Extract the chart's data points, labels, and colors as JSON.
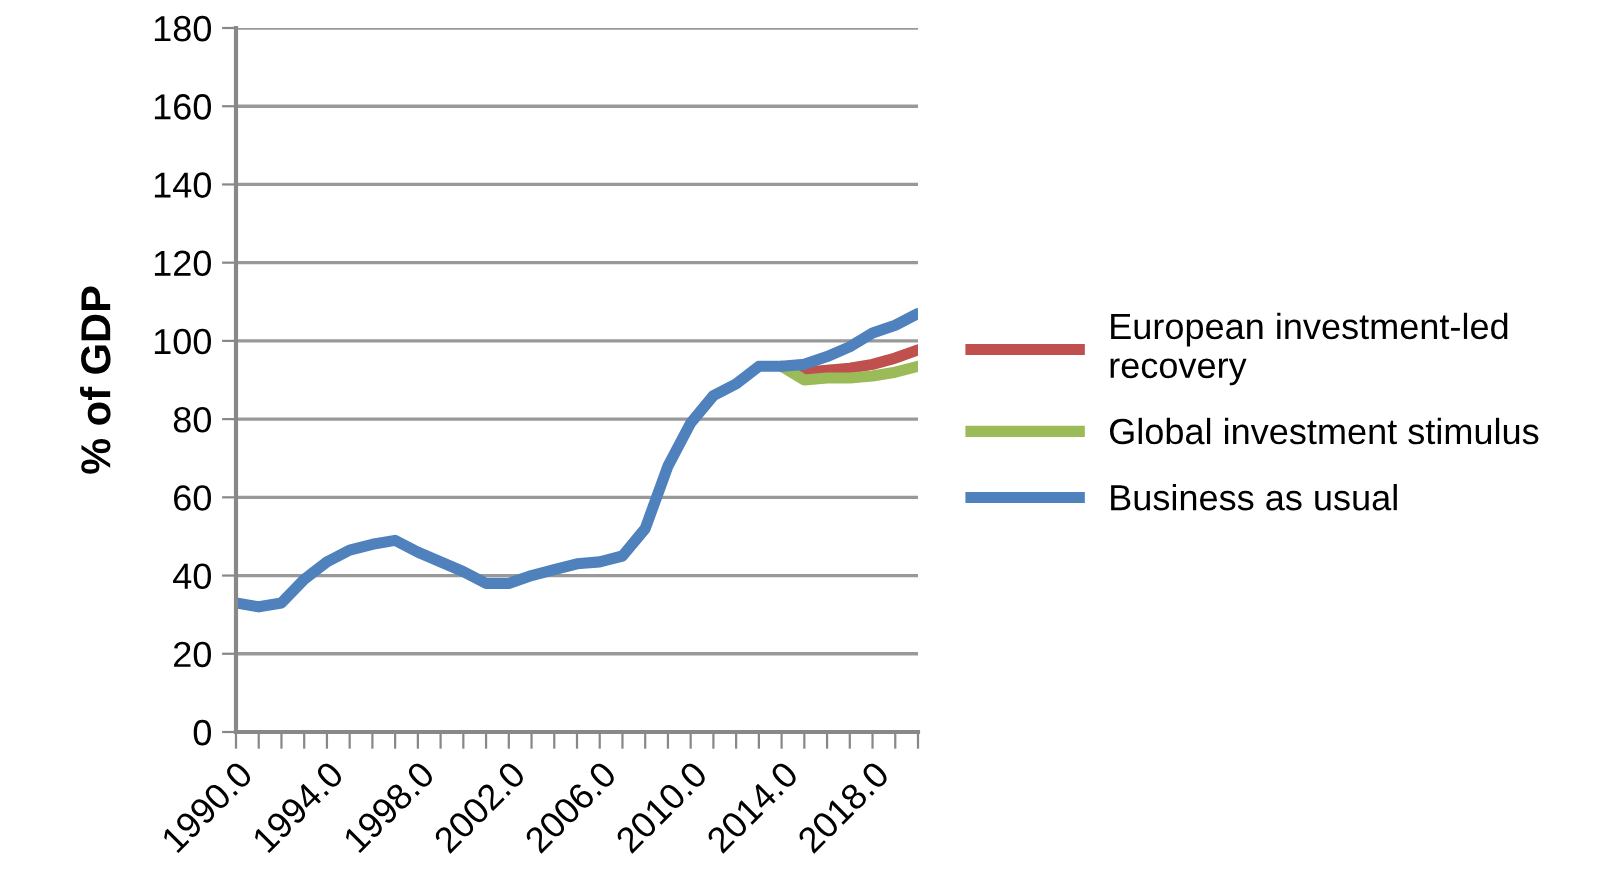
{
  "chart_data": {
    "type": "line",
    "ylabel": "% of GDP",
    "categories": [
      "1990.0",
      null,
      null,
      null,
      "1994.0",
      null,
      null,
      null,
      "1998.0",
      null,
      null,
      null,
      "2002.0",
      null,
      null,
      null,
      "2006.0",
      null,
      null,
      null,
      "2010.0",
      null,
      null,
      null,
      "2014.0",
      null,
      null,
      null,
      "2018.0",
      null,
      null
    ],
    "series": [
      {
        "name": "European investment-led recovery",
        "color": "#c0504d",
        "values": [
          null,
          null,
          null,
          null,
          null,
          null,
          null,
          null,
          null,
          null,
          null,
          null,
          null,
          null,
          null,
          null,
          null,
          null,
          null,
          null,
          null,
          null,
          null,
          null,
          93.5,
          92,
          92.5,
          93,
          94,
          95.6,
          97.7
        ]
      },
      {
        "name": "Global investment stimulus",
        "color": "#9bbb59",
        "values": [
          null,
          null,
          null,
          null,
          null,
          null,
          null,
          null,
          null,
          null,
          null,
          null,
          null,
          null,
          null,
          null,
          null,
          null,
          null,
          null,
          null,
          null,
          null,
          null,
          93.5,
          90,
          90.5,
          90.5,
          91,
          92,
          93.5
        ]
      },
      {
        "name": "Business as usual",
        "color": "#4f81bd",
        "values": [
          33,
          32,
          33,
          39,
          43.5,
          46.5,
          48,
          49,
          46,
          43.5,
          41,
          38,
          38,
          40,
          41.5,
          43,
          43.5,
          45,
          52,
          68,
          79,
          86,
          89,
          93.5,
          93.5,
          94,
          96,
          98.5,
          102,
          104,
          107
        ]
      }
    ],
    "ylim": [
      0,
      180
    ],
    "yticks": [
      0,
      20,
      40,
      60,
      80,
      100,
      120,
      140,
      160,
      180
    ],
    "grid": "y",
    "legend": "right",
    "marker": "none",
    "line_style": "solid"
  }
}
